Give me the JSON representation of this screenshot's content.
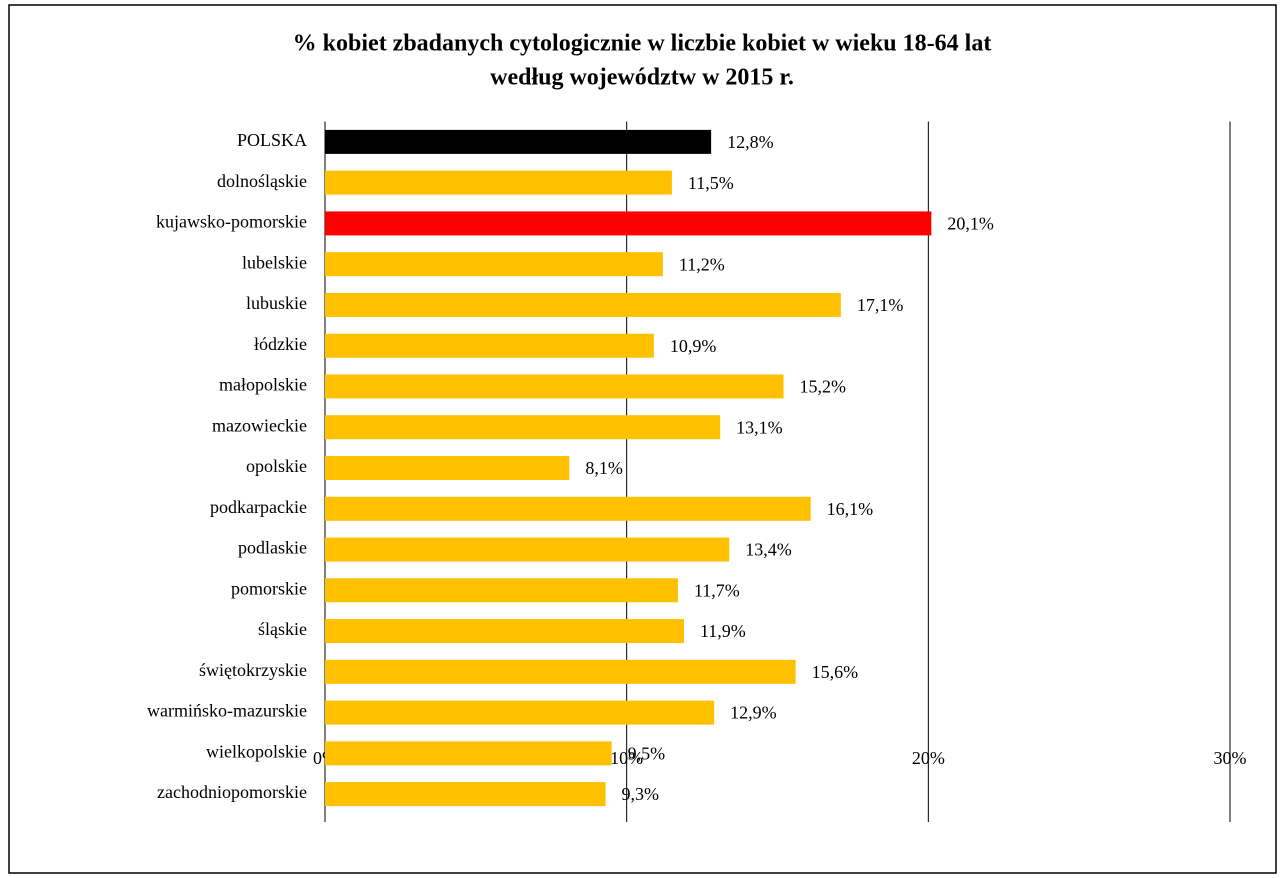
{
  "chart_data": {
    "type": "barh",
    "title": [
      "% kobiet zbadanych cytologicznie w liczbie kobiet w wieku 18-64 lat",
      "według województw w 2015 r."
    ],
    "categories": [
      "POLSKA",
      "dolnośląskie",
      "kujawsko-pomorskie",
      "lubelskie",
      "lubuskie",
      "łódzkie",
      "małopolskie",
      "mazowieckie",
      "opolskie",
      "podkarpackie",
      "podlaskie",
      "pomorskie",
      "śląskie",
      "świętokrzyskie",
      "warmińsko-mazurskie",
      "wielkopolskie",
      "zachodniopomorskie"
    ],
    "values": [
      12.8,
      11.5,
      20.1,
      11.2,
      17.1,
      10.9,
      15.2,
      13.1,
      8.1,
      16.1,
      13.4,
      11.7,
      11.9,
      15.6,
      12.9,
      9.5,
      9.3
    ],
    "value_labels": [
      "12,8%",
      "11,5%",
      "20,1%",
      "11,2%",
      "17,1%",
      "10,9%",
      "15,2%",
      "13,1%",
      "8,1%",
      "16,1%",
      "13,4%",
      "11,7%",
      "11,9%",
      "15,6%",
      "12,9%",
      "9,5%",
      "9,3%"
    ],
    "colors": [
      "#000000",
      "#ffc000",
      "#ff0000",
      "#ffc000",
      "#ffc000",
      "#ffc000",
      "#ffc000",
      "#ffc000",
      "#ffc000",
      "#ffc000",
      "#ffc000",
      "#ffc000",
      "#ffc000",
      "#ffc000",
      "#ffc000",
      "#ffc000",
      "#ffc000"
    ],
    "xlim": [
      0,
      30
    ],
    "xticks": [
      {
        "value": 0,
        "label": "0%"
      },
      {
        "value": 10,
        "label": "10%"
      },
      {
        "value": 20,
        "label": "20%"
      },
      {
        "value": 30,
        "label": "30%"
      }
    ],
    "grid": true
  }
}
